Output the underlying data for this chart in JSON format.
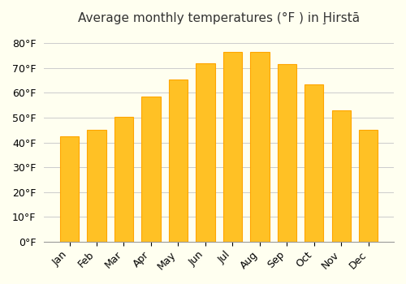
{
  "title": "Average monthly temperatures (°F ) in Ḩirstā",
  "months": [
    "Jan",
    "Feb",
    "Mar",
    "Apr",
    "May",
    "Jun",
    "Jul",
    "Aug",
    "Sep",
    "Oct",
    "Nov",
    "Dec"
  ],
  "values": [
    42.5,
    45.0,
    50.5,
    58.5,
    65.5,
    72.0,
    76.5,
    76.5,
    71.5,
    63.5,
    53.0,
    45.0
  ],
  "bar_color_face": "#FFC125",
  "bar_color_edge": "#FFA500",
  "background_color": "#FFFFF0",
  "grid_color": "#CCCCCC",
  "title_fontsize": 11,
  "tick_fontsize": 9,
  "ylim": [
    0,
    85
  ],
  "yticks": [
    0,
    10,
    20,
    30,
    40,
    50,
    60,
    70,
    80
  ]
}
